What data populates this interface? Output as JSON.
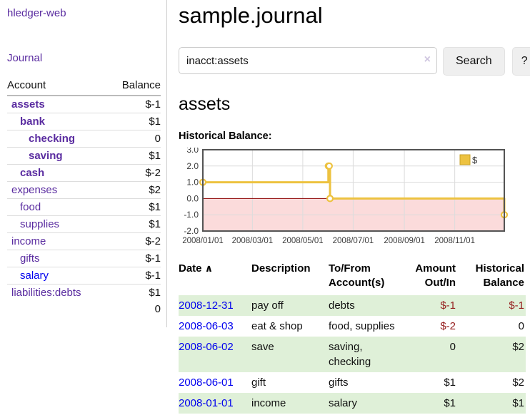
{
  "sidebar": {
    "brand": "hledger-web",
    "journal_link": "Journal",
    "accounts_table": {
      "headers": [
        "Account",
        "Balance"
      ],
      "rows": [
        {
          "name": "assets",
          "balance": "$-1",
          "indent": 1,
          "bold": true,
          "balance_style": "neg-strong"
        },
        {
          "name": "bank",
          "balance": "$1",
          "indent": 2,
          "bold": true,
          "balance_style": "normal"
        },
        {
          "name": "checking",
          "balance": "0",
          "indent": 3,
          "bold": true,
          "balance_style": "normal"
        },
        {
          "name": "saving",
          "balance": "$1",
          "indent": 3,
          "bold": true,
          "balance_style": "normal"
        },
        {
          "name": "cash",
          "balance": "$-2",
          "indent": 2,
          "bold": true,
          "balance_style": "neg-strong"
        },
        {
          "name": "expenses",
          "balance": "$2",
          "indent": 1,
          "bold": false,
          "balance_style": "normal"
        },
        {
          "name": "food",
          "balance": "$1",
          "indent": 2,
          "bold": false,
          "balance_style": "normal"
        },
        {
          "name": "supplies",
          "balance": "$1",
          "indent": 2,
          "bold": false,
          "balance_style": "normal"
        },
        {
          "name": "income",
          "balance": "$-2",
          "indent": 1,
          "bold": false,
          "balance_style": "neg-soft"
        },
        {
          "name": "gifts",
          "balance": "$-1",
          "indent": 2,
          "bold": false,
          "balance_style": "neg-soft"
        },
        {
          "name": "salary",
          "balance": "$-1",
          "indent": 2,
          "bold": false,
          "balance_style": "neg-soft",
          "link_color": "blue"
        },
        {
          "name": "liabilities:debts",
          "balance": "$1",
          "indent": 1,
          "bold": false,
          "balance_style": "normal"
        }
      ],
      "total": "0"
    }
  },
  "header": {
    "title": "sample.journal"
  },
  "search": {
    "value": "inacct:assets",
    "clear_icon": "×",
    "search_button": "Search",
    "help_button": "?"
  },
  "account_page": {
    "title": "assets",
    "chart_label": "Historical Balance:"
  },
  "chart_data": {
    "type": "line",
    "line_style": "step",
    "title": "Historical Balance:",
    "series": [
      {
        "name": "$",
        "color": "#edc240",
        "points": [
          [
            "2008-01-01",
            1
          ],
          [
            "2008-06-01",
            2
          ],
          [
            "2008-06-02",
            2
          ],
          [
            "2008-06-03",
            0
          ],
          [
            "2008-12-31",
            -1
          ]
        ]
      }
    ],
    "xlim": [
      "2008-01-01",
      "2008-12-31"
    ],
    "ylim": [
      -2,
      3
    ],
    "y_ticks": [
      "3.0",
      "2.0",
      "1.0",
      "0.0",
      "-1.0",
      "-2.0"
    ],
    "y_tick_values": [
      3,
      2,
      1,
      0,
      -1,
      -2
    ],
    "x_ticks": [
      "2008-01-01",
      "2008-03-01",
      "2008-05-01",
      "2008-07-01",
      "2008-09-01",
      "2008-11-01"
    ],
    "x_tick_labels": [
      "2008/01/01",
      "2008/03/01",
      "2008/05/01",
      "2008/07/01",
      "2008/09/01",
      "2008/11/01"
    ],
    "grid": true,
    "legend_position": "top-right",
    "legend_label": "$",
    "colors": {
      "line": "#edc240",
      "marker_fill": "#ffffff",
      "legend_box_border": "#c9a227",
      "negative_region": "#fbdbdb",
      "zero_line": "#8b0000",
      "grid": "#dcdcdc",
      "border": "#545454",
      "tick_text": "#3a3a3a"
    }
  },
  "register_table": {
    "sort_icon": "∧",
    "headers": {
      "date": "Date",
      "description": "Description",
      "accounts": "To/From Account(s)",
      "amount": "Amount Out/In",
      "balance": "Historical Balance"
    },
    "rows": [
      {
        "date": "2008-12-31",
        "description": "pay off",
        "accounts": "debts",
        "amount": "$-1",
        "balance": "$-1",
        "amount_neg": true,
        "balance_neg": true,
        "stripe": true
      },
      {
        "date": "2008-06-03",
        "description": "eat & shop",
        "accounts": "food, supplies",
        "amount": "$-2",
        "balance": "0",
        "amount_neg": true,
        "balance_neg": false,
        "stripe": false
      },
      {
        "date": "2008-06-02",
        "description": "save",
        "accounts": "saving, checking",
        "amount": "0",
        "balance": "$2",
        "amount_neg": false,
        "balance_neg": false,
        "stripe": true
      },
      {
        "date": "2008-06-01",
        "description": "gift",
        "accounts": "gifts",
        "amount": "$1",
        "balance": "$2",
        "amount_neg": false,
        "balance_neg": false,
        "stripe": false
      },
      {
        "date": "2008-01-01",
        "description": "income",
        "accounts": "salary",
        "amount": "$1",
        "balance": "$1",
        "amount_neg": false,
        "balance_neg": false,
        "stripe": true
      }
    ]
  },
  "colors": {
    "link_purple": "#5a2ca0",
    "link_blue": "#0000ee",
    "negative_strong": "#951d1d",
    "negative_soft": "#b5696b",
    "row_stripe_green": "#dff0d8",
    "divider": "#cccccc"
  }
}
